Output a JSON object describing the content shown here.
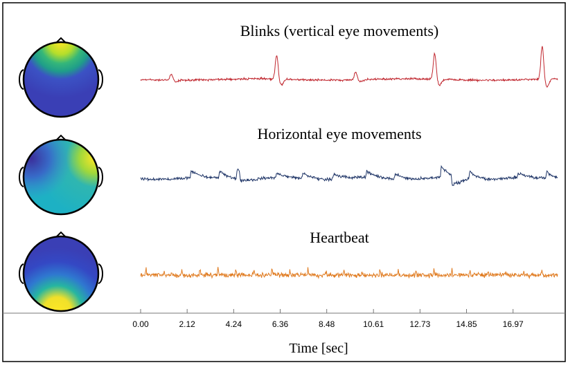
{
  "chart_data": {
    "type": "line",
    "xlabel": "Time [sec]",
    "x_ticks": [
      "0.00",
      "2.12",
      "4.24",
      "6.36",
      "8.48",
      "10.61",
      "12.73",
      "14.85",
      "16.97"
    ],
    "xlim": [
      0,
      19
    ],
    "series": [
      {
        "name": "Blinks (vertical eye movements)",
        "color": "#c0262e",
        "topomap": "frontal",
        "events": [
          {
            "t": 1.4,
            "amp": 0.25
          },
          {
            "t": 6.2,
            "amp": 1.0
          },
          {
            "t": 9.8,
            "amp": 0.35
          },
          {
            "t": 13.4,
            "amp": 1.1
          },
          {
            "t": 18.3,
            "amp": 1.4
          }
        ]
      },
      {
        "name": "Horizontal eye movements",
        "color": "#1f3567",
        "topomap": "lateral",
        "events": [
          {
            "t": 2.3,
            "amp": 0.6
          },
          {
            "t": 3.6,
            "amp": 0.7
          },
          {
            "t": 4.4,
            "amp": 1.0
          },
          {
            "t": 4.55,
            "amp": -0.8
          },
          {
            "t": 6.2,
            "amp": 0.4
          },
          {
            "t": 7.4,
            "amp": 0.5
          },
          {
            "t": 8.8,
            "amp": 0.5
          },
          {
            "t": 10.3,
            "amp": 0.6
          },
          {
            "t": 11.6,
            "amp": 0.5
          },
          {
            "t": 13.7,
            "amp": 1.0
          },
          {
            "t": 14.2,
            "amp": -1.0
          },
          {
            "t": 15.0,
            "amp": 0.7
          },
          {
            "t": 17.2,
            "amp": 0.4
          },
          {
            "t": 18.5,
            "amp": 0.6
          }
        ]
      },
      {
        "name": "Heartbeat",
        "color": "#e07b20",
        "topomap": "occipital",
        "beat_period": 0.82
      }
    ]
  }
}
